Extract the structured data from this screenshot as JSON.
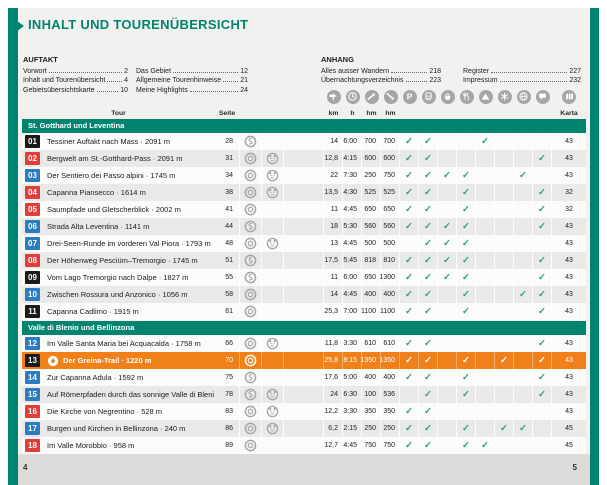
{
  "page": {
    "title": "INHALT UND TOURENÜBERSICHT",
    "page_number_left": "4",
    "page_number_right": "5"
  },
  "toc": {
    "columns": [
      {
        "heading": "AUFTAKT",
        "items": [
          {
            "label": "Vorwort",
            "page": "2"
          },
          {
            "label": "Inhalt und Tourenübersicht",
            "page": "4"
          },
          {
            "label": "Gebietsübersichtskarte",
            "page": "10"
          }
        ]
      },
      {
        "heading": "",
        "items": [
          {
            "label": "Das Gebiet",
            "page": "12"
          },
          {
            "label": "Allgemeine Tourenhinweise",
            "page": "21"
          },
          {
            "label": "Meine Highlights",
            "page": "24"
          }
        ]
      },
      {
        "heading": "ANHANG",
        "items": [
          {
            "label": "Alles ausser Wandern",
            "page": "218"
          },
          {
            "label": "Übernachtungsverzeichnis",
            "page": "223"
          }
        ]
      },
      {
        "heading": "",
        "items": [
          {
            "label": "Register",
            "page": "227"
          },
          {
            "label": "Impressum",
            "page": "232"
          }
        ]
      }
    ]
  },
  "table": {
    "col_headers": {
      "tour": "Tour",
      "seite": "Seite",
      "karta": "Karta",
      "units": [
        "km",
        "h",
        "hm",
        "hm"
      ]
    },
    "header_icons": [
      "signpost",
      "clock",
      "ascent",
      "descent",
      "parking",
      "train",
      "basket",
      "restaurant",
      "hut",
      "snowflake",
      "globe",
      "chat",
      "map"
    ],
    "sections": [
      {
        "title": "St. Gotthard und Leventina",
        "rows": [
          {
            "num": "01",
            "color": "black",
            "title": "Tessiner Auftakt nach Mass · 2091 m",
            "seite": "28",
            "badges": [
              "hiker"
            ],
            "km": "14",
            "h": "6:00",
            "hm_up": "700",
            "hm_down": "700",
            "checks": [
              "parking",
              "train",
              "hut"
            ],
            "karta": "43",
            "highlight": false
          },
          {
            "num": "02",
            "color": "red",
            "title": "Bergwelt am St.-Gotthard-Pass · 2091 m",
            "seite": "31",
            "badges": [
              "ring",
              "bear"
            ],
            "km": "12,8",
            "h": "4:15",
            "hm_up": "600",
            "hm_down": "600",
            "checks": [
              "parking",
              "train",
              "chat"
            ],
            "karta": "43",
            "highlight": false
          },
          {
            "num": "03",
            "color": "blue",
            "title": "Der Sentiero dei Passo alpini · 1745 m",
            "seite": "34",
            "badges": [
              "ring",
              "bear"
            ],
            "km": "22",
            "h": "7:30",
            "hm_up": "250",
            "hm_down": "750",
            "checks": [
              "parking",
              "train",
              "basket",
              "restaurant",
              "globe"
            ],
            "karta": "43",
            "highlight": false
          },
          {
            "num": "04",
            "color": "red",
            "title": "Capanna Piansecco · 1614 m",
            "seite": "38",
            "badges": [
              "ring",
              "bear"
            ],
            "km": "13,5",
            "h": "4:30",
            "hm_up": "525",
            "hm_down": "525",
            "checks": [
              "parking",
              "train",
              "restaurant",
              "chat"
            ],
            "karta": "32",
            "highlight": false
          },
          {
            "num": "05",
            "color": "red",
            "title": "Saumpfade und Gletscherblick · 2002 m",
            "seite": "41",
            "badges": [
              "ring"
            ],
            "km": "11",
            "h": "4:45",
            "hm_up": "650",
            "hm_down": "650",
            "checks": [
              "parking",
              "train",
              "restaurant",
              "chat"
            ],
            "karta": "32",
            "highlight": false
          },
          {
            "num": "06",
            "color": "blue",
            "title": "Strada Alta Leventina · 1141 m",
            "seite": "44",
            "badges": [
              "hiker"
            ],
            "km": "18",
            "h": "5:30",
            "hm_up": "560",
            "hm_down": "560",
            "checks": [
              "parking",
              "train",
              "basket",
              "restaurant",
              "chat"
            ],
            "karta": "43",
            "highlight": false
          },
          {
            "num": "07",
            "color": "blue",
            "title": "Drei-Seen-Runde im vorderen Val Piora · 1793 m",
            "seite": "48",
            "badges": [
              "ring",
              "bear"
            ],
            "km": "13",
            "h": "4:45",
            "hm_up": "500",
            "hm_down": "500",
            "checks": [
              "train",
              "basket",
              "restaurant"
            ],
            "karta": "43",
            "highlight": false
          },
          {
            "num": "08",
            "color": "red",
            "title": "Der Höhenweg Pesciüm–Tremorgio · 1745 m",
            "seite": "51",
            "badges": [
              "hiker"
            ],
            "km": "17,5",
            "h": "5:45",
            "hm_up": "818",
            "hm_down": "810",
            "checks": [
              "parking",
              "train",
              "basket",
              "restaurant",
              "chat"
            ],
            "karta": "43",
            "highlight": false
          },
          {
            "num": "09",
            "color": "black",
            "title": "Vom Lago Tremorgio nach Dalpe · 1827 m",
            "seite": "55",
            "badges": [
              "hiker"
            ],
            "km": "11",
            "h": "6:00",
            "hm_up": "650",
            "hm_down": "1300",
            "checks": [
              "parking",
              "train",
              "basket",
              "restaurant",
              "chat"
            ],
            "karta": "43",
            "highlight": false
          },
          {
            "num": "10",
            "color": "blue",
            "title": "Zwischen Rossura und Anzonico · 1056 m",
            "seite": "58",
            "badges": [
              "ring"
            ],
            "km": "14",
            "h": "4:45",
            "hm_up": "400",
            "hm_down": "400",
            "checks": [
              "parking",
              "train",
              "restaurant",
              "globe",
              "chat"
            ],
            "karta": "43",
            "highlight": false
          },
          {
            "num": "11",
            "color": "black",
            "title": "Capanna Cadlimo · 1915 m",
            "seite": "61",
            "badges": [
              "ring"
            ],
            "km": "25,3",
            "h": "7:00",
            "hm_up": "1100",
            "hm_down": "1100",
            "checks": [
              "parking",
              "train",
              "restaurant",
              "chat"
            ],
            "karta": "43",
            "highlight": false
          }
        ]
      },
      {
        "title": "Valle di Blenio und Bellinzona",
        "rows": [
          {
            "num": "12",
            "color": "blue",
            "title": "Im Valle Santa Maria bei Acquacalda · 1758 m",
            "seite": "66",
            "badges": [
              "ring",
              "bear"
            ],
            "km": "11,8",
            "h": "3:30",
            "hm_up": "610",
            "hm_down": "610",
            "checks": [
              "parking",
              "train",
              "chat"
            ],
            "karta": "43",
            "highlight": false
          },
          {
            "num": "13",
            "color": "black",
            "title": "Der Greina-Trail · 1220 m",
            "seite": "70",
            "badges": [
              "ring"
            ],
            "km": "25,8",
            "h": "8:15",
            "hm_up": "1350",
            "hm_down": "1350",
            "checks": [
              "parking",
              "train",
              "restaurant",
              "snowflake",
              "chat"
            ],
            "karta": "43",
            "highlight": true
          },
          {
            "num": "14",
            "color": "blue",
            "title": "Zur Capanna Adula · 1592 m",
            "seite": "75",
            "badges": [
              "hiker"
            ],
            "km": "17,6",
            "h": "5:00",
            "hm_up": "400",
            "hm_down": "400",
            "checks": [
              "parking",
              "train",
              "restaurant",
              "chat"
            ],
            "karta": "43",
            "highlight": false
          },
          {
            "num": "15",
            "color": "blue",
            "title": "Auf Römerpfaden durch das sonnige Valle di Blenio · 889 m",
            "seite": "78",
            "badges": [
              "hiker",
              "bear"
            ],
            "km": "24",
            "h": "6:30",
            "hm_up": "100",
            "hm_down": "536",
            "checks": [
              "train",
              "restaurant",
              "chat"
            ],
            "karta": "43",
            "highlight": false
          },
          {
            "num": "16",
            "color": "red",
            "title": "Die Kirche von Negrentino · 528 m",
            "seite": "83",
            "badges": [
              "ring",
              "bear"
            ],
            "km": "12,2",
            "h": "3:30",
            "hm_up": "350",
            "hm_down": "350",
            "checks": [
              "parking",
              "train"
            ],
            "karta": "43",
            "highlight": false
          },
          {
            "num": "17",
            "color": "blue",
            "title": "Burgen und Kirchen in Bellinzona · 240 m",
            "seite": "86",
            "badges": [
              "ring",
              "bear"
            ],
            "km": "6,2",
            "h": "2:15",
            "hm_up": "250",
            "hm_down": "250",
            "checks": [
              "parking",
              "train",
              "restaurant",
              "snowflake",
              "globe"
            ],
            "karta": "45",
            "highlight": false
          },
          {
            "num": "18",
            "color": "red",
            "title": "Im Valle Morobbio · 958 m",
            "seite": "89",
            "badges": [
              "ring"
            ],
            "km": "12,7",
            "h": "4:45",
            "hm_up": "750",
            "hm_down": "750",
            "checks": [
              "parking",
              "train",
              "restaurant",
              "hut"
            ],
            "karta": "45",
            "highlight": false
          }
        ]
      }
    ]
  },
  "colors": {
    "teal": "#00846F",
    "orange": "#F08019",
    "red_badge": "#E23E39",
    "blue_badge": "#2B7DC0",
    "black_badge": "#1A1A1A",
    "check_green": "#2F9E82",
    "icon_gray": "#A6A6A4"
  }
}
